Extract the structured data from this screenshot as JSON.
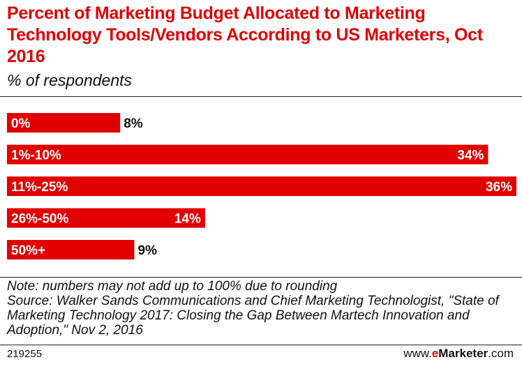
{
  "header": {
    "title": "Percent of Marketing Budget Allocated to Marketing Technology Tools/Vendors According to US Marketers, Oct 2016",
    "subtitle": "% of respondents"
  },
  "chart_data": {
    "type": "bar",
    "orientation": "horizontal",
    "categories": [
      "0%",
      "1%-10%",
      "11%-25%",
      "26%-50%",
      "50%+"
    ],
    "values": [
      8,
      34,
      36,
      14,
      9
    ],
    "value_labels": [
      "8%",
      "34%",
      "36%",
      "14%",
      "9%"
    ],
    "xlim": [
      0,
      36
    ],
    "bar_color": "#e00000",
    "grid": false
  },
  "notes": {
    "note": "Note: numbers may not add up to 100% due to rounding",
    "source": "Source: Walker Sands Communications and Chief Marketing Technologist, \"State of Marketing Technology 2017: Closing the Gap Between Martech Innovation and Adoption,\" Nov 2, 2016"
  },
  "footer": {
    "id": "219255",
    "site_prefix": "www.",
    "site_e": "e",
    "site_brand": "Marketer",
    "site_suffix": ".com"
  }
}
